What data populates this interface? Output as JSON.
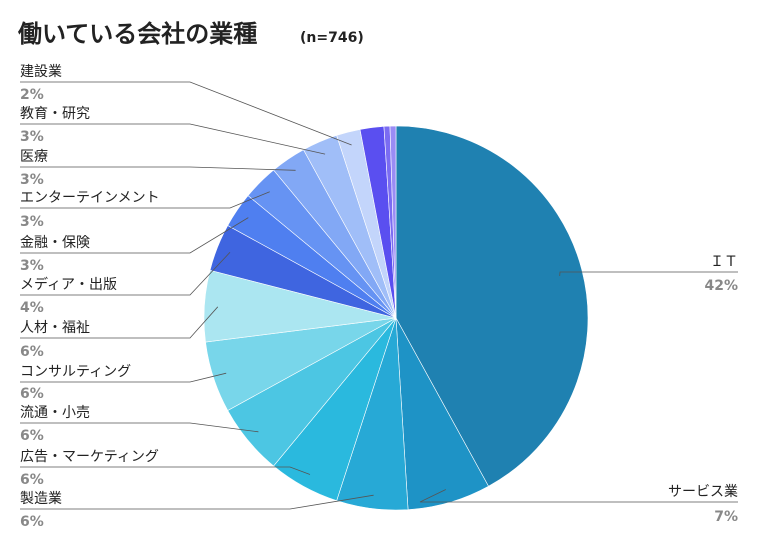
{
  "chart_data": {
    "type": "pie",
    "title": "働いている会社の業種",
    "title_note": "(n=746)",
    "start_angle_deg": 0,
    "direction": "clockwise",
    "slices": [
      {
        "label": "ＩＴ",
        "value": 42,
        "pct_label": "42%",
        "color": "#1f81b1"
      },
      {
        "label": "サービス業",
        "value": 7,
        "pct_label": "7%",
        "color": "#1e93c6"
      },
      {
        "label": "製造業",
        "value": 6,
        "pct_label": "6%",
        "color": "#27a9d6"
      },
      {
        "label": "広告・マーケティング",
        "value": 6,
        "pct_label": "6%",
        "color": "#2ab9de"
      },
      {
        "label": "流通・小売",
        "value": 6,
        "pct_label": "6%",
        "color": "#4cc6e3"
      },
      {
        "label": "コンサルティング",
        "value": 6,
        "pct_label": "6%",
        "color": "#78d6ea"
      },
      {
        "label": "人材・福祉",
        "value": 6,
        "pct_label": "6%",
        "color": "#abe6f1"
      },
      {
        "label": "メディア・出版",
        "value": 4,
        "pct_label": "4%",
        "color": "#3f65e0"
      },
      {
        "label": "金融・保険",
        "value": 3,
        "pct_label": "3%",
        "color": "#4f7ff0"
      },
      {
        "label": "エンターテインメント",
        "value": 3,
        "pct_label": "3%",
        "color": "#6693f3"
      },
      {
        "label": "医療",
        "value": 3,
        "pct_label": "3%",
        "color": "#82a8f5"
      },
      {
        "label": "教育・研究",
        "value": 3,
        "pct_label": "3%",
        "color": "#a0bef8"
      },
      {
        "label": "建設業",
        "value": 2,
        "pct_label": "2%",
        "color": "#c3d5fb"
      },
      {
        "label": "",
        "value": 2,
        "pct_label": "",
        "color": "#5a4ff0"
      },
      {
        "label": "",
        "value": 0.5,
        "pct_label": "",
        "color": "#7b6cf2"
      },
      {
        "label": "",
        "value": 0.5,
        "pct_label": "",
        "color": "#9a8cf5"
      }
    ]
  }
}
